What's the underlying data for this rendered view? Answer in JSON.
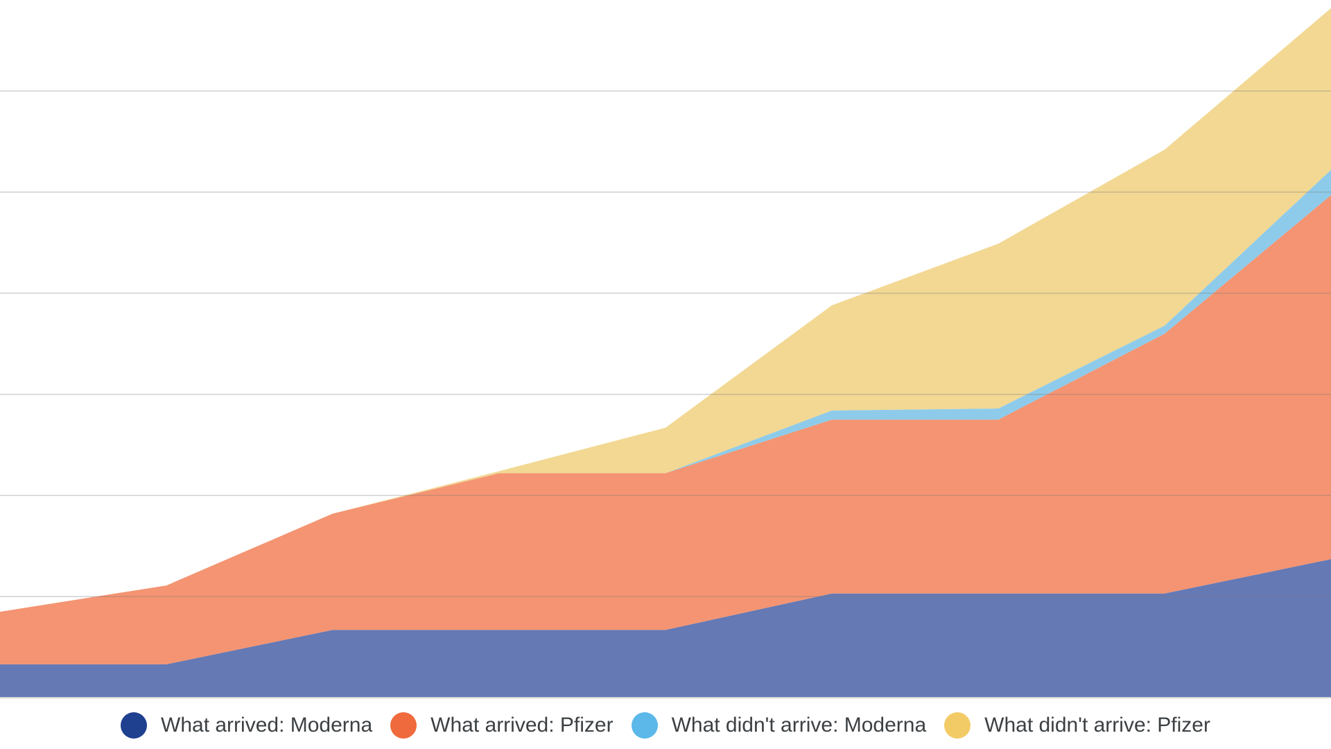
{
  "chart_data": {
    "type": "area",
    "stacked": true,
    "grid": true,
    "legend_position": "bottom",
    "x": [
      1,
      2,
      3,
      4,
      5,
      6,
      7,
      8,
      9
    ],
    "ylim": [
      0,
      6.9
    ],
    "gridlines": [
      1,
      2,
      3,
      4,
      5,
      6
    ],
    "series": [
      {
        "name": "What arrived: Moderna",
        "color": "#6579b4",
        "legend_color": "#1f3f8f",
        "values": [
          0.33,
          0.33,
          0.67,
          0.67,
          0.67,
          1.03,
          1.03,
          1.03,
          1.37
        ]
      },
      {
        "name": "What arrived: Pfizer",
        "color": "#f49472",
        "legend_color": "#ef6a3c",
        "values": [
          0.52,
          0.78,
          1.15,
          1.55,
          1.55,
          1.72,
          1.72,
          2.57,
          3.6
        ]
      },
      {
        "name": "What didn't arrive: Moderna",
        "color": "#8ecbea",
        "legend_color": "#5bb8e8",
        "values": [
          0,
          0,
          0,
          0,
          0,
          0.09,
          0.11,
          0.08,
          0.25
        ]
      },
      {
        "name": "What didn't arrive: Pfizer",
        "color": "#f2d893",
        "legend_color": "#f2cb66",
        "values": [
          0,
          0,
          0,
          0.02,
          0.45,
          1.04,
          1.63,
          1.74,
          1.6
        ]
      }
    ]
  }
}
